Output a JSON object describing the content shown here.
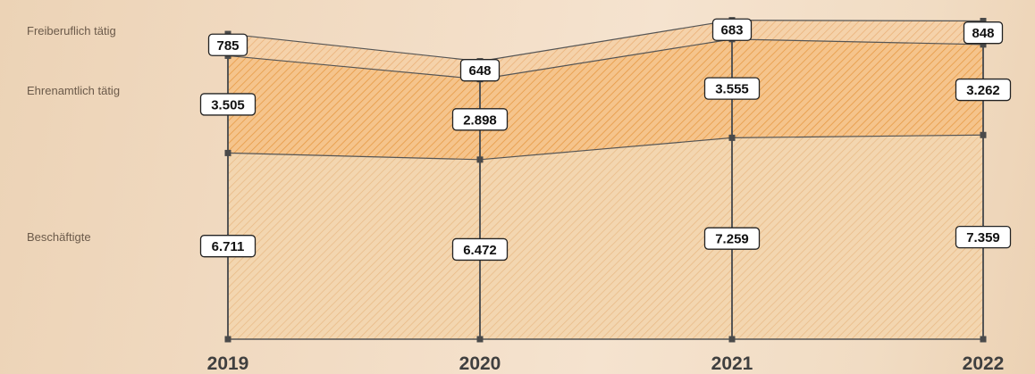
{
  "chart_data": {
    "type": "area",
    "stacked": true,
    "x": [
      "2019",
      "2020",
      "2021",
      "2022"
    ],
    "series": [
      {
        "name": "Beschäftigte",
        "values": [
          6711,
          6472,
          7259,
          7359
        ],
        "labels": [
          "6.711",
          "6.472",
          "7.259",
          "7.359"
        ]
      },
      {
        "name": "Ehrenamtlich tätig",
        "values": [
          3505,
          2898,
          3555,
          3262
        ],
        "labels": [
          "3.505",
          "2.898",
          "3.555",
          "3.262"
        ]
      },
      {
        "name": "Freiberuflich tätig",
        "values": [
          785,
          648,
          683,
          848
        ],
        "labels": [
          "785",
          "648",
          "683",
          "848"
        ]
      }
    ],
    "title": "",
    "xlabel": "",
    "ylabel": "",
    "ylim": [
      0,
      12000
    ],
    "grid": false,
    "legend": "left",
    "colors": {
      "Beschäftigte": "#f1d1a8",
      "Ehrenamtlich tätig": "#f5b872",
      "Freiberuflich tätig": "#f4c896",
      "axis": "#555555",
      "label_box": "#ffffff"
    }
  }
}
